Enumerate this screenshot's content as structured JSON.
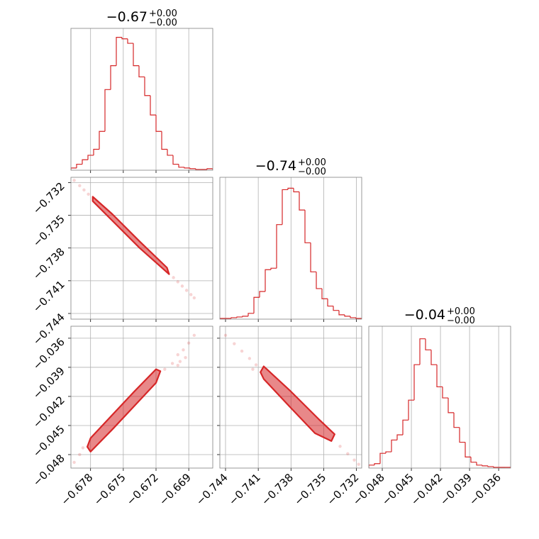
{
  "chart_data": [
    {
      "type": "histogram",
      "title": "−0.67",
      "title_upper": "+0.00",
      "title_lower": "−0.00",
      "color": "#d62728",
      "grid": true,
      "bins": [
        -0.6798,
        -0.67928,
        -0.67876,
        -0.67824,
        -0.67772,
        -0.6772,
        -0.67668,
        -0.67616,
        -0.67564,
        -0.67512,
        -0.6746,
        -0.67408,
        -0.67356,
        -0.67304,
        -0.67252,
        -0.672,
        -0.67148,
        -0.67096,
        -0.67044,
        -0.66992,
        -0.6694,
        -0.66888,
        -0.66836,
        -0.66784,
        -0.66732,
        -0.6668
      ],
      "counts": [
        3,
        8,
        14,
        20,
        28,
        52,
        108,
        140,
        178,
        176,
        170,
        140,
        125,
        100,
        74,
        52,
        28,
        20,
        8,
        4,
        3,
        2,
        1,
        1,
        2
      ],
      "xlim": [
        -0.6798,
        -0.6668
      ],
      "ylim": [
        0,
        190
      ],
      "xticks": [
        -0.678,
        -0.675,
        -0.672,
        -0.669
      ]
    },
    {
      "type": "histogram",
      "title": "−0.74",
      "title_upper": "+0.00",
      "title_lower": "−0.00",
      "color": "#d62728",
      "grid": true,
      "bins": [
        -0.74452,
        -0.744,
        -0.74348,
        -0.74296,
        -0.74244,
        -0.74192,
        -0.7414,
        -0.74088,
        -0.74036,
        -0.73984,
        -0.73932,
        -0.7388,
        -0.73828,
        -0.73776,
        -0.73724,
        -0.73672,
        -0.7362,
        -0.73568,
        -0.73516,
        -0.73464,
        -0.73412,
        -0.7336,
        -0.73308,
        -0.73256,
        -0.73204,
        -0.73152
      ],
      "counts": [
        1,
        1,
        2,
        3,
        4,
        8,
        30,
        38,
        68,
        70,
        130,
        178,
        180,
        175,
        150,
        105,
        65,
        42,
        28,
        18,
        12,
        6,
        4,
        2,
        1
      ],
      "xlim": [
        -0.74452,
        -0.73152
      ],
      "ylim": [
        0,
        195
      ],
      "xticks": [
        -0.744,
        -0.741,
        -0.738,
        -0.735,
        -0.732
      ]
    },
    {
      "type": "histogram",
      "title": "−0.04",
      "title_upper": "+0.00",
      "title_lower": "−0.00",
      "color": "#d62728",
      "grid": true,
      "bins": [
        -0.04939,
        -0.048805,
        -0.04822,
        -0.047635,
        -0.04705,
        -0.046465,
        -0.04588,
        -0.045295,
        -0.04471,
        -0.044125,
        -0.04354,
        -0.042955,
        -0.04237,
        -0.041785,
        -0.0412,
        -0.040615,
        -0.04003,
        -0.039445,
        -0.03886,
        -0.038275,
        -0.03769,
        -0.037105,
        -0.03652,
        -0.035935,
        -0.03535,
        -0.034765
      ],
      "counts": [
        4,
        6,
        20,
        22,
        38,
        45,
        65,
        92,
        140,
        175,
        160,
        140,
        110,
        95,
        75,
        55,
        35,
        15,
        8,
        4,
        3,
        2,
        1,
        1,
        1
      ],
      "xlim": [
        -0.04939,
        -0.034765
      ],
      "ylim": [
        0,
        192
      ],
      "xticks": [
        {
          "value": -0.048,
          "label": "−0.048"
        },
        {
          "value": -0.045,
          "label": "−0.045"
        },
        {
          "value": -0.042,
          "label": "−0.042"
        },
        {
          "value": -0.039,
          "label": "−0.039"
        },
        {
          "value": -0.036,
          "label": "−0.036"
        }
      ]
    },
    {
      "type": "scatter",
      "color": "#d62728",
      "grid": true,
      "x": [
        -0.6795,
        -0.679,
        -0.6786,
        -0.6782,
        -0.6704,
        -0.67,
        -0.6696,
        -0.6692,
        -0.6688,
        -0.6685
      ],
      "y": [
        -0.7318,
        -0.73229,
        -0.73268,
        -0.73307,
        -0.74071,
        -0.7411,
        -0.74149,
        -0.74188,
        -0.74227,
        -0.74257
      ],
      "contour_x": [
        -0.6778,
        -0.676,
        -0.6735,
        -0.671,
        -0.6708,
        -0.6735,
        -0.676,
        -0.6778
      ],
      "contour_y": [
        -0.7333,
        -0.7349,
        -0.7374,
        -0.7398,
        -0.7404,
        -0.738,
        -0.7355,
        -0.7337
      ],
      "xlim": [
        -0.6798,
        -0.6668
      ],
      "ylim": [
        -0.74452,
        -0.73152
      ],
      "yticks": [
        {
          "value": -0.732,
          "label": "−0.732"
        },
        {
          "value": -0.735,
          "label": "−0.735"
        },
        {
          "value": -0.738,
          "label": "−0.738"
        },
        {
          "value": -0.741,
          "label": "−0.741"
        },
        {
          "value": -0.744,
          "label": "−0.744"
        }
      ],
      "xticks": [
        -0.678,
        -0.675,
        -0.672,
        -0.669
      ]
    },
    {
      "type": "scatter",
      "color": "#d62728",
      "grid": true,
      "x": [
        -0.6795,
        -0.679,
        -0.6787,
        -0.6705,
        -0.67,
        -0.6695,
        -0.669,
        -0.6685,
        -0.6712,
        -0.6698,
        -0.67,
        -0.6693
      ],
      "y": [
        -0.0488,
        -0.048,
        -0.0473,
        -0.0386,
        -0.0377,
        -0.0372,
        -0.0365,
        -0.0357,
        -0.0392,
        -0.0384,
        -0.0388,
        -0.038
      ],
      "contour_x": [
        -0.678,
        -0.676,
        -0.674,
        -0.672,
        -0.6716,
        -0.672,
        -0.674,
        -0.676,
        -0.678,
        -0.6783
      ],
      "contour_y": [
        -0.0463,
        -0.0439,
        -0.0415,
        -0.0392,
        -0.0394,
        -0.0406,
        -0.043,
        -0.0454,
        -0.0477,
        -0.0472
      ],
      "xlim": [
        -0.6798,
        -0.6668
      ],
      "ylim": [
        -0.04939,
        -0.034765
      ],
      "xticks": [
        {
          "value": -0.678,
          "label": "−0.678"
        },
        {
          "value": -0.675,
          "label": "−0.675"
        },
        {
          "value": -0.672,
          "label": "−0.672"
        },
        {
          "value": -0.669,
          "label": "−0.669"
        }
      ],
      "yticks": [
        {
          "value": -0.036,
          "label": "−0.036"
        },
        {
          "value": -0.039,
          "label": "−0.039"
        },
        {
          "value": -0.042,
          "label": "−0.042"
        },
        {
          "value": -0.045,
          "label": "−0.045"
        },
        {
          "value": -0.048,
          "label": "−0.048"
        }
      ]
    },
    {
      "type": "scatter",
      "color": "#d62728",
      "grid": true,
      "x": [
        -0.744,
        -0.7432,
        -0.7425,
        -0.7418,
        -0.7412,
        -0.7335,
        -0.7328,
        -0.7322,
        -0.7318,
        -0.7415
      ],
      "y": [
        -0.0357,
        -0.03657,
        -0.03733,
        -0.03809,
        -0.03875,
        -0.04715,
        -0.04791,
        -0.04856,
        -0.049,
        -0.0392
      ],
      "contour_x": [
        -0.7405,
        -0.738,
        -0.7355,
        -0.734,
        -0.7343,
        -0.7358,
        -0.738,
        -0.7405,
        -0.7408
      ],
      "contour_y": [
        -0.0389,
        -0.0415,
        -0.0443,
        -0.0459,
        -0.0466,
        -0.0458,
        -0.0432,
        -0.0402,
        -0.0395
      ],
      "xlim": [
        -0.74452,
        -0.73152
      ],
      "ylim": [
        -0.04939,
        -0.034765
      ],
      "xticks": [
        {
          "value": -0.744,
          "label": "−0.744"
        },
        {
          "value": -0.741,
          "label": "−0.741"
        },
        {
          "value": -0.738,
          "label": "−0.738"
        },
        {
          "value": -0.735,
          "label": "−0.735"
        },
        {
          "value": -0.732,
          "label": "−0.732"
        }
      ],
      "yticks": [
        -0.036,
        -0.039,
        -0.042,
        -0.045,
        -0.048
      ]
    }
  ]
}
